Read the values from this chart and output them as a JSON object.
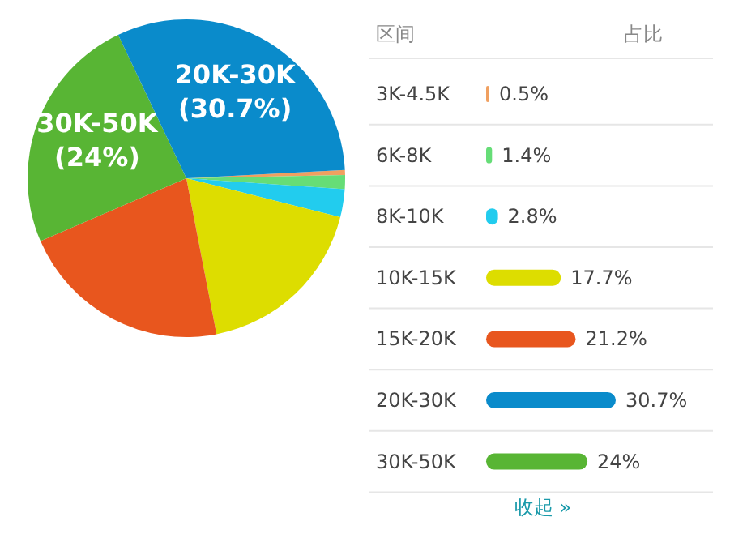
{
  "chart_data": [
    {
      "type": "pie",
      "categories": [
        null,
        null,
        null,
        null,
        null,
        "30K-50K",
        "20K-30K"
      ],
      "values": [
        0.5,
        1.4,
        2.8,
        17.7,
        21.2,
        24,
        30.7
      ],
      "colors": [
        "#f0a060",
        "#66dd77",
        "#22ccee",
        "#dddd00",
        "#e8561e",
        "#58b534",
        "#0a8bcb"
      ],
      "value_labels": [
        null,
        null,
        null,
        null,
        null,
        "(24%)",
        "(30.7%)"
      ]
    },
    {
      "type": "bar",
      "orientation": "horizontal",
      "categories": [
        "3K-4.5K",
        "6K-8K",
        "8K-10K",
        "10K-15K",
        "15K-20K",
        "20K-30K",
        "30K-50K"
      ],
      "values": [
        0.5,
        1.4,
        2.8,
        17.7,
        21.2,
        30.7,
        24
      ],
      "colors": [
        "#f0a060",
        "#66dd77",
        "#22ccee",
        "#dddd00",
        "#e8561e",
        "#0a8bcb",
        "#58b534"
      ],
      "value_labels": [
        "0.5%",
        "1.4%",
        "2.8%",
        "17.7%",
        "21.2%",
        "30.7%",
        "24%"
      ],
      "annotations": [
        "区间",
        "占比",
        "收起 »"
      ]
    }
  ]
}
